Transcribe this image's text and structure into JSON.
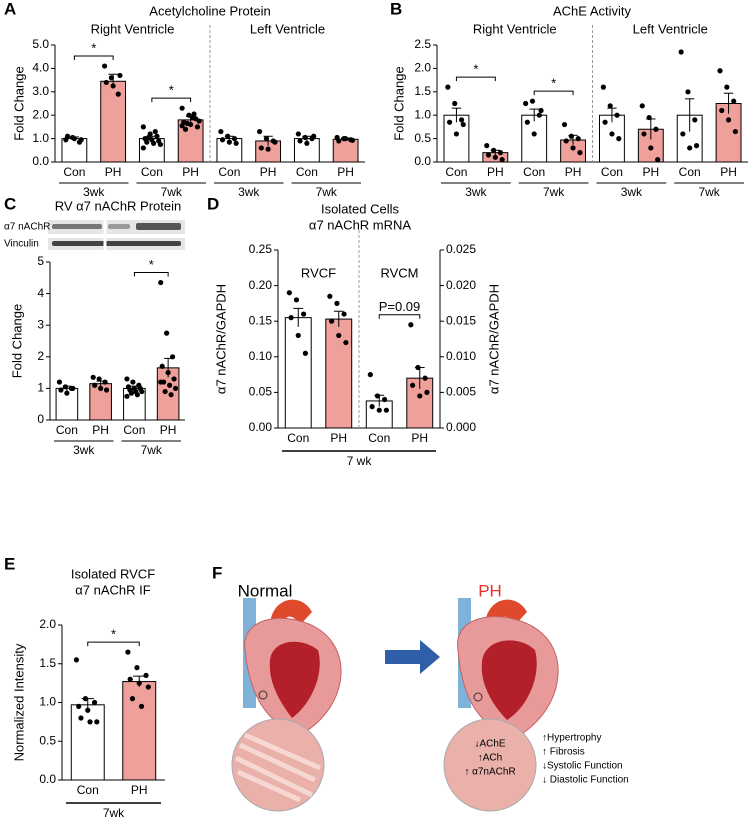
{
  "chart_data": [
    {
      "type": "bar",
      "panel": "A",
      "title": "Acetylcholine Protein",
      "ylabel": "Fold Change",
      "ylim": [
        0,
        5
      ],
      "yticks": [
        {
          "value": 0,
          "label": "0.0"
        },
        {
          "value": 1,
          "label": "1.0"
        },
        {
          "value": 2,
          "label": "2.0"
        },
        {
          "value": 3,
          "label": "3.0"
        },
        {
          "value": 4,
          "label": "4.0"
        },
        {
          "value": 5,
          "label": "5.0"
        }
      ],
      "sections": [
        "Right Ventricle",
        "Left Ventricle"
      ],
      "categories": [
        "Con",
        "PH",
        "Con",
        "PH",
        "Con",
        "PH",
        "Con",
        "PH"
      ],
      "pair_labels": [
        "3wk",
        "7wk",
        "3wk",
        "7wk"
      ],
      "colors": [
        "#ffffff",
        "#f0a09b",
        "#ffffff",
        "#f0a09b",
        "#ffffff",
        "#f0a09b",
        "#ffffff",
        "#f0a09b"
      ],
      "values": [
        1.0,
        3.45,
        1.0,
        1.8,
        1.0,
        0.9,
        1.0,
        0.97
      ],
      "errors": [
        0.07,
        0.3,
        0.1,
        0.15,
        0.1,
        0.2,
        0.1,
        0.05
      ],
      "points": [
        [
          0.95,
          1.05,
          0.85,
          1.1,
          1.0,
          0.95
        ],
        [
          4.1,
          3.6,
          2.9,
          3.4,
          3.25,
          3.7
        ],
        [
          1.5,
          1.2,
          1.1,
          1.0,
          0.95,
          0.9,
          0.85,
          0.8,
          0.75,
          1.05,
          1.3,
          0.6
        ],
        [
          2.3,
          2.0,
          1.85,
          1.7,
          1.6,
          1.5,
          1.4,
          1.9,
          1.75,
          1.65,
          2.05,
          1.55
        ],
        [
          1.3,
          1.1,
          1.0,
          0.95,
          0.85,
          0.8
        ],
        [
          1.3,
          1.0,
          0.9,
          0.6,
          0.55,
          0.85
        ],
        [
          1.2,
          1.05,
          1.0,
          0.9,
          0.8,
          1.1
        ],
        [
          1.05,
          1.0,
          0.95,
          0.9,
          1.0,
          0.93
        ]
      ],
      "brackets": [
        {
          "label": "*",
          "from": 0,
          "to": 1
        },
        {
          "label": "*",
          "from": 2,
          "to": 3
        }
      ]
    },
    {
      "type": "bar",
      "panel": "B",
      "title": "AChE Activity",
      "ylabel": "Fold Change",
      "ylim": [
        0,
        2.5
      ],
      "yticks": [
        {
          "value": 0,
          "label": "0.0"
        },
        {
          "value": 0.5,
          "label": "0.5"
        },
        {
          "value": 1,
          "label": "1.0"
        },
        {
          "value": 1.5,
          "label": "1.5"
        },
        {
          "value": 2,
          "label": "2.0"
        },
        {
          "value": 2.5,
          "label": "2.5"
        }
      ],
      "sections": [
        "Right Ventricle",
        "Left Ventricle"
      ],
      "categories": [
        "Con",
        "PH",
        "Con",
        "PH",
        "Con",
        "PH",
        "Con",
        "PH"
      ],
      "pair_labels": [
        "3wk",
        "7wk",
        "3wk",
        "7wk"
      ],
      "colors": [
        "#ffffff",
        "#f0a09b",
        "#ffffff",
        "#f0a09b",
        "#ffffff",
        "#f0a09b",
        "#ffffff",
        "#f0a09b"
      ],
      "values": [
        1.0,
        0.2,
        1.0,
        0.47,
        1.0,
        0.7,
        1.0,
        1.25
      ],
      "errors": [
        0.15,
        0.05,
        0.13,
        0.1,
        0.15,
        0.22,
        0.35,
        0.22
      ],
      "points": [
        [
          1.6,
          1.25,
          0.9,
          0.85,
          0.6,
          0.8
        ],
        [
          0.35,
          0.25,
          0.2,
          0.15,
          0.1,
          0.05
        ],
        [
          1.25,
          1.3,
          1.0,
          0.85,
          0.6,
          1.1
        ],
        [
          0.8,
          0.55,
          0.5,
          0.45,
          0.3,
          0.2
        ],
        [
          1.6,
          1.2,
          1.0,
          0.85,
          0.6,
          0.5
        ],
        [
          1.2,
          0.95,
          0.7,
          0.6,
          0.3,
          0.05
        ],
        [
          2.35,
          1.5,
          0.9,
          0.6,
          0.3,
          0.35
        ],
        [
          1.95,
          1.6,
          1.3,
          1.1,
          0.9,
          0.65
        ]
      ],
      "brackets": [
        {
          "label": "*",
          "from": 0,
          "to": 1
        },
        {
          "label": "*",
          "from": 2,
          "to": 3
        }
      ]
    },
    {
      "type": "bar",
      "panel": "C",
      "title": "RV α7 nAChR Protein",
      "ylabel": "Fold Change",
      "blot_labels": [
        "α7 nAChR",
        "Vinculin"
      ],
      "ylim": [
        0,
        5
      ],
      "yticks": [
        0,
        1,
        2,
        3,
        4,
        5
      ],
      "categories": [
        "Con",
        "PH",
        "Con",
        "PH"
      ],
      "pair_labels": [
        "3wk",
        "7wk"
      ],
      "colors": [
        "#ffffff",
        "#f0a09b",
        "#ffffff",
        "#f0a09b"
      ],
      "values": [
        1.0,
        1.15,
        1.0,
        1.65
      ],
      "errors": [
        0.07,
        0.08,
        0.07,
        0.3
      ],
      "points": [
        [
          1.2,
          1.05,
          1.0,
          0.95,
          0.85,
          1.0
        ],
        [
          1.35,
          1.3,
          1.2,
          1.1,
          1.0,
          0.95
        ],
        [
          1.3,
          1.2,
          1.1,
          1.05,
          1.0,
          1.0,
          0.95,
          0.9,
          0.9,
          0.85,
          0.8,
          0.75
        ],
        [
          4.35,
          2.75,
          2.0,
          1.7,
          1.5,
          1.3,
          1.2,
          1.1,
          1.0,
          0.9,
          0.8,
          1.2
        ]
      ],
      "brackets": [
        {
          "label": "*",
          "from": 2,
          "to": 3
        }
      ]
    },
    {
      "type": "bar",
      "panel": "D",
      "title": "Isolated Cells",
      "subtitle": "α7 nAChR mRNA",
      "ylabel": "α7 nAChR/GAPDH",
      "y2label": "α7 nAChR/GAPDH",
      "ylim": [
        0,
        0.25
      ],
      "yticks": [
        {
          "value": 0,
          "label": "0.00"
        },
        {
          "value": 0.05,
          "label": "0.05"
        },
        {
          "value": 0.1,
          "label": "0.10"
        },
        {
          "value": 0.15,
          "label": "0.15"
        },
        {
          "value": 0.2,
          "label": "0.20"
        },
        {
          "value": 0.25,
          "label": "0.25"
        }
      ],
      "y2lim": [
        0,
        0.025
      ],
      "y2ticks": [
        {
          "value": 0,
          "label": "0.000"
        },
        {
          "value": 0.005,
          "label": "0.005"
        },
        {
          "value": 0.01,
          "label": "0.010"
        },
        {
          "value": 0.015,
          "label": "0.015"
        },
        {
          "value": 0.02,
          "label": "0.020"
        },
        {
          "value": 0.025,
          "label": "0.025"
        }
      ],
      "sections": [
        "RVCF",
        "RVCM"
      ],
      "categories": [
        "Con",
        "PH",
        "Con",
        "PH"
      ],
      "axes": [
        "y",
        "y",
        "y2",
        "y2"
      ],
      "group_label": "7 wk",
      "colors": [
        "#ffffff",
        "#f0a09b",
        "#ffffff",
        "#f0a09b"
      ],
      "values": [
        0.155,
        0.153,
        0.0038,
        0.007
      ],
      "errors": [
        0.013,
        0.011,
        0.0008,
        0.0015
      ],
      "points": [
        [
          0.19,
          0.18,
          0.16,
          0.155,
          0.13,
          0.105
        ],
        [
          0.185,
          0.175,
          0.16,
          0.15,
          0.13,
          0.12
        ],
        [
          0.0075,
          0.0045,
          0.004,
          0.003,
          0.0025,
          0.0025
        ],
        [
          0.0145,
          0.0085,
          0.007,
          0.006,
          0.0045,
          0.005
        ]
      ],
      "brackets": [
        {
          "label": "P=0.09",
          "from": 2,
          "to": 3
        }
      ]
    },
    {
      "type": "bar",
      "panel": "E",
      "title": "Isolated RVCF",
      "subtitle": "α7 nAChR IF",
      "ylabel": "Normalized Intensity",
      "ylim": [
        0,
        2
      ],
      "yticks": [
        {
          "value": 0,
          "label": "0.0"
        },
        {
          "value": 0.5,
          "label": "0.5"
        },
        {
          "value": 1,
          "label": "1.0"
        },
        {
          "value": 1.5,
          "label": "1.5"
        },
        {
          "value": 2,
          "label": "2.0"
        }
      ],
      "categories": [
        "Con",
        "PH"
      ],
      "group_label": "7wk",
      "colors": [
        "#ffffff",
        "#f0a09b"
      ],
      "values": [
        0.97,
        1.27
      ],
      "errors": [
        0.08,
        0.07
      ],
      "points": [
        [
          1.55,
          1.05,
          1.0,
          0.95,
          0.9,
          0.75,
          0.8,
          0.75
        ],
        [
          1.65,
          1.45,
          1.35,
          1.3,
          1.25,
          1.2,
          1.05,
          0.95
        ]
      ],
      "brackets": [
        {
          "label": "*",
          "from": 0,
          "to": 1
        }
      ]
    }
  ],
  "diagram": {
    "panel": "F",
    "normal": "Normal",
    "ph": "PH",
    "inset": [
      "↓AChE",
      "↑ACh",
      "↑ α7nAChR"
    ],
    "effects": [
      "↑Hypertrophy",
      "↑ Fibrosis",
      "↓Systolic Function",
      "↓ Diastolic Function"
    ]
  }
}
